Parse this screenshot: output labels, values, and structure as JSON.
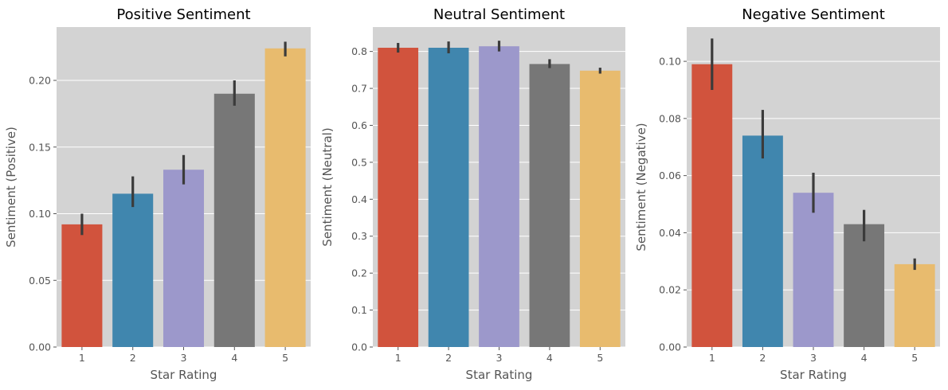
{
  "chart_data": [
    {
      "type": "bar",
      "title": "Positive Sentiment",
      "xlabel": "Star Rating",
      "ylabel": "Sentiment (Positive)",
      "categories": [
        "1",
        "2",
        "3",
        "4",
        "5"
      ],
      "values": [
        0.092,
        0.115,
        0.133,
        0.19,
        0.224
      ],
      "ci_low": [
        0.084,
        0.105,
        0.122,
        0.181,
        0.218
      ],
      "ci_high": [
        0.1,
        0.128,
        0.144,
        0.2,
        0.229
      ],
      "ylim": [
        0,
        0.24
      ],
      "yticks": [
        0.0,
        0.05,
        0.1,
        0.15,
        0.2
      ],
      "ytick_labels": [
        "0.00",
        "0.05",
        "0.10",
        "0.15",
        "0.20"
      ]
    },
    {
      "type": "bar",
      "title": "Neutral Sentiment",
      "xlabel": "Star Rating",
      "ylabel": "Sentiment (Neutral)",
      "categories": [
        "1",
        "2",
        "3",
        "4",
        "5"
      ],
      "values": [
        0.81,
        0.81,
        0.814,
        0.766,
        0.748
      ],
      "ci_low": [
        0.797,
        0.795,
        0.8,
        0.755,
        0.74
      ],
      "ci_high": [
        0.823,
        0.827,
        0.829,
        0.779,
        0.756
      ],
      "ylim": [
        0,
        0.866
      ],
      "yticks": [
        0.0,
        0.1,
        0.2,
        0.3,
        0.4,
        0.5,
        0.6,
        0.7,
        0.8
      ],
      "ytick_labels": [
        "0.0",
        "0.1",
        "0.2",
        "0.3",
        "0.4",
        "0.5",
        "0.6",
        "0.7",
        "0.8"
      ]
    },
    {
      "type": "bar",
      "title": "Negative Sentiment",
      "xlabel": "Star Rating",
      "ylabel": "Sentiment (Negative)",
      "categories": [
        "1",
        "2",
        "3",
        "4",
        "5"
      ],
      "values": [
        0.099,
        0.074,
        0.054,
        0.043,
        0.029
      ],
      "ci_low": [
        0.09,
        0.066,
        0.047,
        0.037,
        0.027
      ],
      "ci_high": [
        0.108,
        0.083,
        0.061,
        0.048,
        0.031
      ],
      "ylim": [
        0,
        0.112
      ],
      "yticks": [
        0.0,
        0.02,
        0.04,
        0.06,
        0.08,
        0.1
      ],
      "ytick_labels": [
        "0.00",
        "0.02",
        "0.04",
        "0.06",
        "0.08",
        "0.10"
      ]
    }
  ],
  "colors": {
    "bars": [
      "#D1533D",
      "#4086AE",
      "#9C98CB",
      "#777777",
      "#E8BB6E"
    ],
    "plot_background": "#D3D3D3",
    "grid": "#FFFFFF",
    "errorbar": "#3B3B3B"
  }
}
